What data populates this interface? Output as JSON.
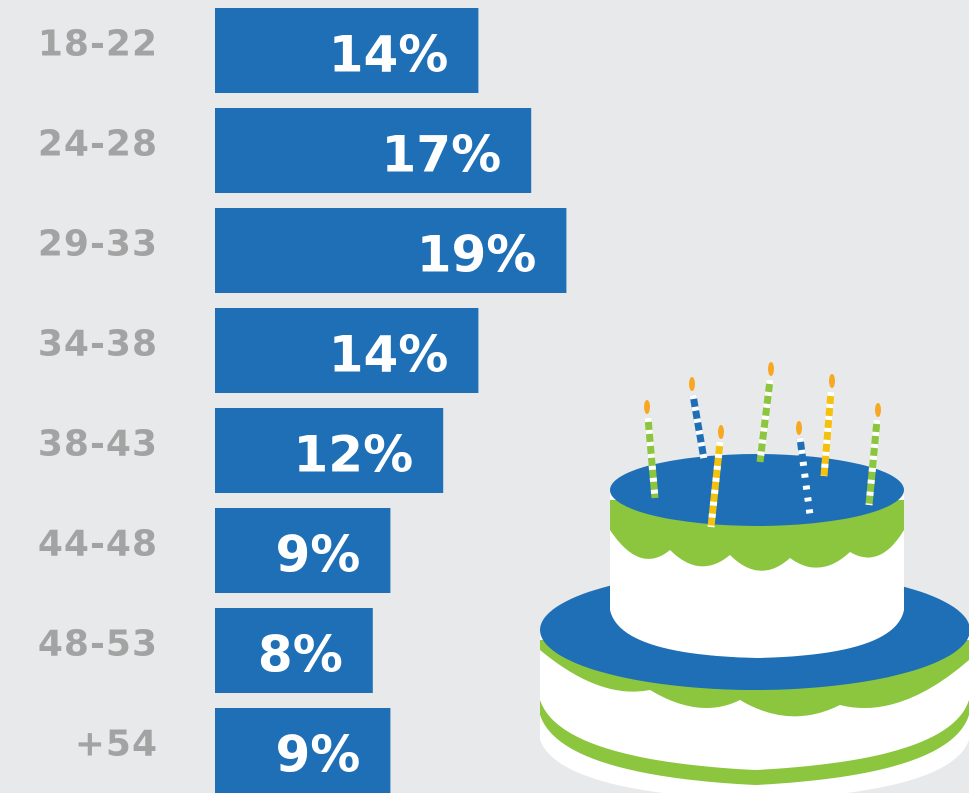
{
  "chart_data": {
    "type": "bar",
    "orientation": "horizontal",
    "color": "#1e6fb6",
    "categories": [
      "18-22",
      "24-28",
      "29-33",
      "34-38",
      "38-43",
      "44-48",
      "48-53",
      "+54"
    ],
    "values": [
      14,
      17,
      19,
      14,
      12,
      9,
      8,
      9
    ],
    "value_labels": [
      "14%",
      "17%",
      "19%",
      "14%",
      "12%",
      "9%",
      "8%",
      "9%"
    ]
  }
}
